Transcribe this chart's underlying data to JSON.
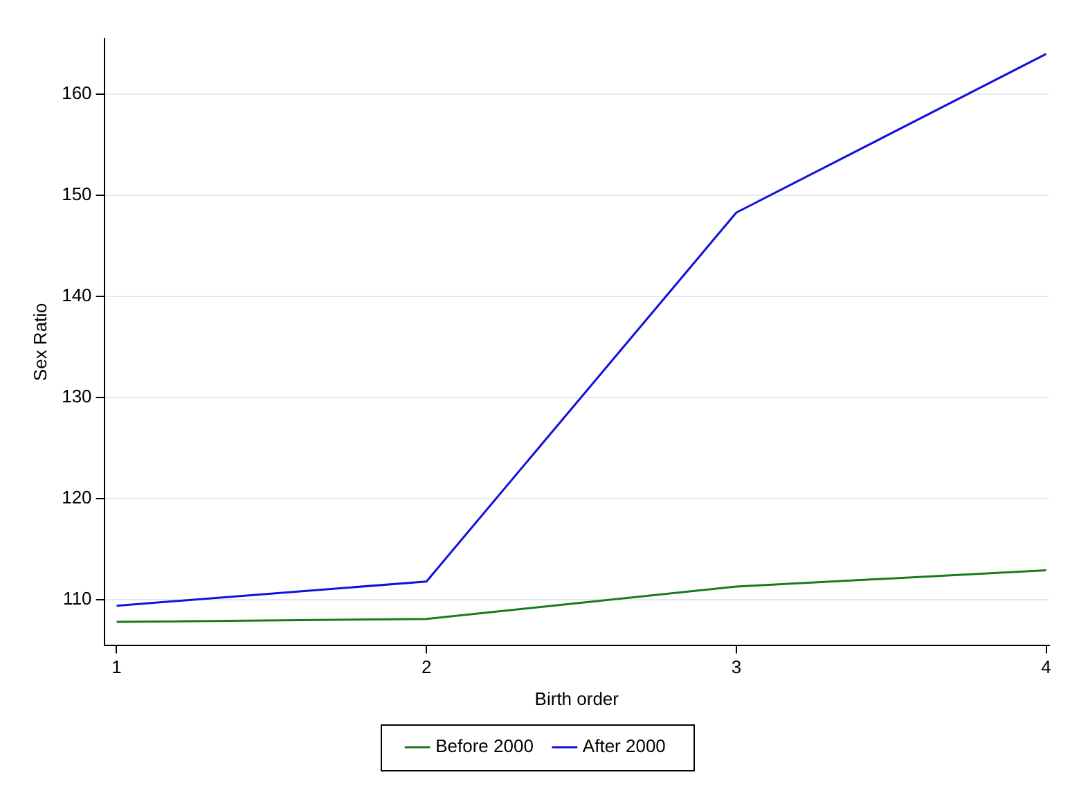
{
  "chart_data": {
    "type": "line",
    "xlabel": "Birth order",
    "ylabel": "Sex Ratio",
    "x": [
      1,
      2,
      3,
      4
    ],
    "series": [
      {
        "name": "Before 2000",
        "color": "#1a7a1a",
        "values": [
          107.8,
          108.1,
          111.3,
          112.9
        ]
      },
      {
        "name": "After 2000",
        "color": "#1010e0",
        "values": [
          109.4,
          111.8,
          148.3,
          164.0
        ]
      }
    ],
    "xlim": [
      0.96,
      4.01
    ],
    "xticks": [
      1,
      2,
      3,
      4
    ],
    "ylim": [
      105.5,
      165.5
    ],
    "yticks": [
      110,
      120,
      130,
      140,
      150,
      160
    ],
    "grid": "y",
    "legend": "bottom",
    "marker": "none",
    "line_style": "solid"
  }
}
